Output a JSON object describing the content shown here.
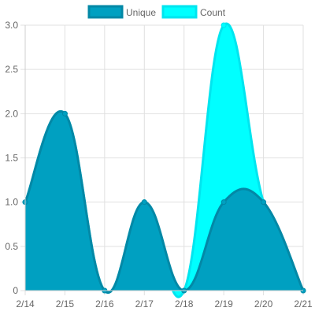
{
  "chart_data": {
    "type": "area",
    "categories": [
      "2/14",
      "2/15",
      "2/16",
      "2/17",
      "2/18",
      "2/19",
      "2/20",
      "2/21"
    ],
    "series": [
      {
        "name": "Unique",
        "values": [
          1,
          2,
          0,
          1,
          0,
          1,
          1,
          0
        ],
        "fill": "#00a0c1",
        "stroke": "#0388a6"
      },
      {
        "name": "Count",
        "values": [
          1,
          2,
          0,
          1,
          0,
          3,
          1,
          0
        ],
        "fill": "#00ffff",
        "stroke": "#00e5ef"
      }
    ],
    "ylim": [
      0,
      3
    ],
    "yticks": [
      "0",
      "0.5",
      "1.0",
      "1.5",
      "2.0",
      "2.5",
      "3.0"
    ],
    "grid": true,
    "legend_position": "top-center",
    "title": "",
    "xlabel": "",
    "ylabel": ""
  }
}
